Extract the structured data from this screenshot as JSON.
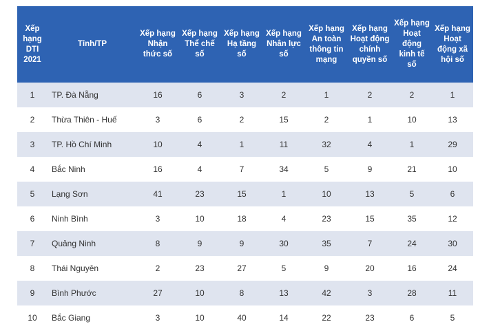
{
  "table": {
    "headers": [
      "Xếp hạng DTI 2021",
      "Tỉnh/TP",
      "Xếp hạng Nhận thức số",
      "Xếp hạng Thể chế số",
      "Xếp hạng Hạ tầng số",
      "Xếp hạng Nhân lực số",
      "Xếp hạng An toàn thông tin mạng",
      "Xếp hạng Hoạt động chính quyền số",
      "Xếp hạng Hoạt động kinh tế số",
      "Xếp hạng Hoạt động xã hội số"
    ],
    "rows": [
      [
        "1",
        "TP. Đà Nẵng",
        "16",
        "6",
        "3",
        "2",
        "1",
        "2",
        "2",
        "1"
      ],
      [
        "2",
        "Thừa Thiên - Huế",
        "3",
        "6",
        "2",
        "15",
        "2",
        "1",
        "10",
        "13"
      ],
      [
        "3",
        "TP. Hồ Chí Minh",
        "10",
        "4",
        "1",
        "11",
        "32",
        "4",
        "1",
        "29"
      ],
      [
        "4",
        "Bắc Ninh",
        "16",
        "4",
        "7",
        "34",
        "5",
        "9",
        "21",
        "10"
      ],
      [
        "5",
        "Lạng Sơn",
        "41",
        "23",
        "15",
        "1",
        "10",
        "13",
        "5",
        "6"
      ],
      [
        "6",
        "Ninh Bình",
        "3",
        "10",
        "18",
        "4",
        "23",
        "15",
        "35",
        "12"
      ],
      [
        "7",
        "Quảng Ninh",
        "8",
        "9",
        "9",
        "30",
        "35",
        "7",
        "24",
        "30"
      ],
      [
        "8",
        "Thái Nguyên",
        "2",
        "23",
        "27",
        "5",
        "9",
        "20",
        "16",
        "24"
      ],
      [
        "9",
        "Bình Phước",
        "27",
        "10",
        "8",
        "13",
        "42",
        "3",
        "28",
        "11"
      ],
      [
        "10",
        "Bắc Giang",
        "3",
        "10",
        "40",
        "14",
        "22",
        "23",
        "6",
        "5"
      ]
    ]
  },
  "colors": {
    "header_bg": "#2e63b3",
    "header_text": "#ffffff",
    "stripe": "#dfe4ef",
    "body_text": "#333333"
  }
}
